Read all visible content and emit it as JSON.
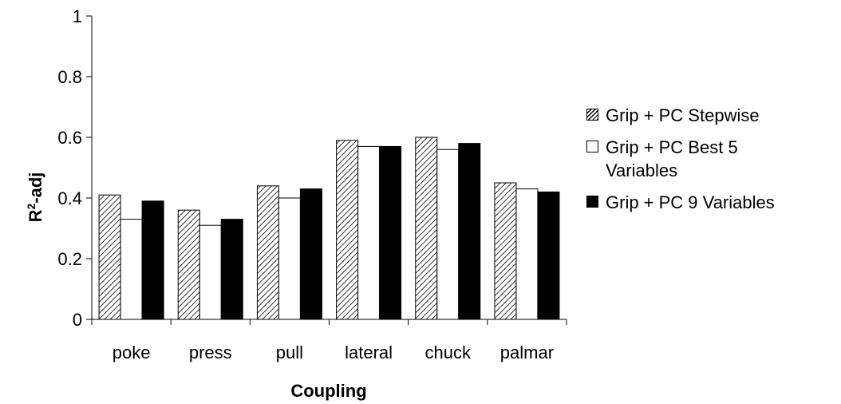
{
  "chart_data": {
    "type": "bar",
    "title": "",
    "xlabel": "Coupling",
    "ylabel": "R",
    "ylabel_sup": "2",
    "ylabel_suffix": "-adj",
    "ylim": [
      0,
      1
    ],
    "yticks": [
      "0",
      "0.2",
      "0.4",
      "0.6",
      "0.8",
      "1"
    ],
    "grid": false,
    "legend_position": "right",
    "categories": [
      "poke",
      "press",
      "pull",
      "lateral",
      "chuck",
      "palmar"
    ],
    "series": [
      {
        "name": "Grip + PC Stepwise",
        "fill": "hatch",
        "values": [
          0.41,
          0.36,
          0.44,
          0.59,
          0.6,
          0.45
        ]
      },
      {
        "name": "Grip + PC Best 5 Variables",
        "fill": "white",
        "values": [
          0.33,
          0.31,
          0.4,
          0.57,
          0.56,
          0.43
        ]
      },
      {
        "name": "Grip + PC 9 Variables",
        "fill": "black",
        "values": [
          0.39,
          0.33,
          0.43,
          0.57,
          0.58,
          0.42
        ]
      }
    ]
  },
  "legend": {
    "items": [
      {
        "line1": "Grip + PC Stepwise",
        "line2": ""
      },
      {
        "line1": "Grip + PC Best 5",
        "line2": "Variables"
      },
      {
        "line1": "Grip + PC 9 Variables",
        "line2": ""
      }
    ]
  }
}
